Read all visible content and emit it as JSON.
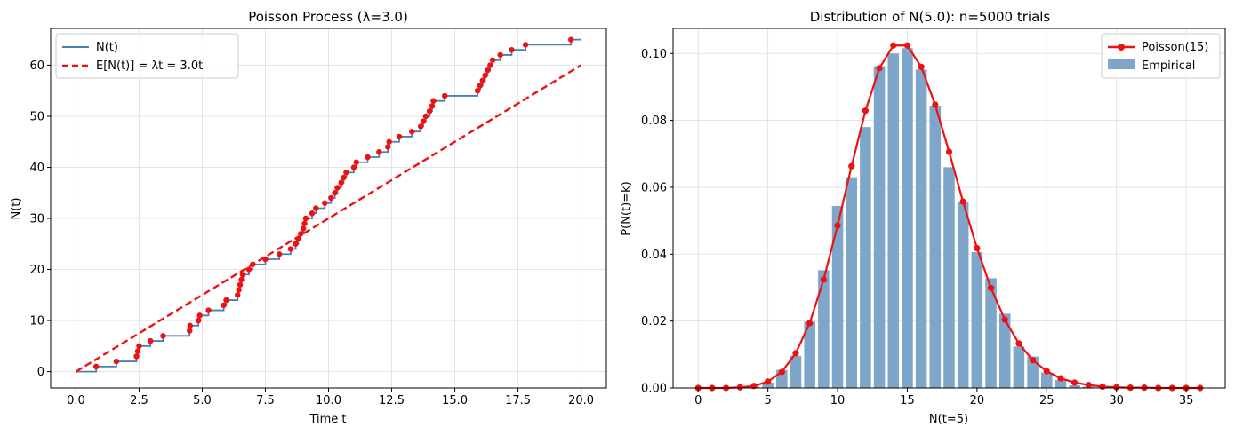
{
  "charts": [
    {
      "type": "line",
      "title": "Poisson Process (λ=3.0)",
      "xlabel": "Time t",
      "ylabel": "N(t)",
      "xlim": [
        -1.0,
        21.0
      ],
      "ylim": [
        -3.2,
        67.2
      ],
      "xticks": [
        0,
        2.5,
        5,
        7.5,
        10,
        12.5,
        15,
        17.5,
        20
      ],
      "xtick_labels": [
        "0.0",
        "2.5",
        "5.0",
        "7.5",
        "10.0",
        "12.5",
        "15.0",
        "17.5",
        "20.0"
      ],
      "yticks": [
        0,
        10,
        20,
        30,
        40,
        50,
        60
      ],
      "ytick_labels": [
        "0",
        "10",
        "20",
        "30",
        "40",
        "50",
        "60"
      ],
      "legend": {
        "placement": "top-left",
        "entries": [
          "N(t)",
          "E[N(t)] = λt = 3.0t"
        ]
      },
      "colors": {
        "step": "#4682b4",
        "expected": "#ee1111",
        "events": "#ee1111"
      },
      "t_end": 20.0,
      "event_times": [
        0.8,
        1.6,
        2.4,
        2.45,
        2.5,
        2.95,
        3.45,
        4.5,
        4.52,
        4.85,
        4.9,
        5.25,
        5.85,
        5.95,
        6.4,
        6.45,
        6.5,
        6.55,
        6.6,
        6.85,
        7.0,
        7.5,
        8.05,
        8.5,
        8.7,
        8.8,
        8.9,
        9.0,
        9.05,
        9.1,
        9.35,
        9.5,
        9.85,
        10.1,
        10.25,
        10.35,
        10.5,
        10.6,
        10.7,
        11.0,
        11.1,
        11.55,
        12.0,
        12.35,
        12.4,
        12.8,
        13.3,
        13.65,
        13.75,
        13.85,
        14.0,
        14.1,
        14.15,
        14.6,
        15.9,
        16.0,
        16.1,
        16.2,
        16.3,
        16.4,
        16.5,
        16.8,
        17.25,
        17.8,
        19.6
      ],
      "expected_rate": 3.0
    },
    {
      "type": "bar",
      "title": "Distribution of N(5.0): n=5000 trials",
      "xlabel": "N(t=5)",
      "ylabel": "P(N(t)=k)",
      "xlim": [
        -1.8,
        37.8
      ],
      "ylim": [
        0,
        0.1075
      ],
      "xticks": [
        0,
        5,
        10,
        15,
        20,
        25,
        30,
        35
      ],
      "xtick_labels": [
        "0",
        "5",
        "10",
        "15",
        "20",
        "25",
        "30",
        "35"
      ],
      "yticks": [
        0,
        0.02,
        0.04,
        0.06,
        0.08,
        0.1
      ],
      "ytick_labels": [
        "0.00",
        "0.02",
        "0.04",
        "0.06",
        "0.08",
        "0.10"
      ],
      "legend": {
        "placement": "top-right",
        "entries": [
          "Poisson(15)",
          "Empirical"
        ]
      },
      "colors": {
        "bars": "#7ea6cb",
        "pmf": "#ee1111"
      },
      "categories": [
        4,
        5,
        6,
        7,
        8,
        9,
        10,
        11,
        12,
        13,
        14,
        15,
        16,
        17,
        18,
        19,
        20,
        21,
        22,
        23,
        24,
        25,
        26,
        27,
        28,
        29
      ],
      "empirical": [
        0.0004,
        0.0016,
        0.0054,
        0.0096,
        0.0198,
        0.0352,
        0.0544,
        0.063,
        0.078,
        0.0962,
        0.1,
        0.1016,
        0.0952,
        0.0844,
        0.066,
        0.0556,
        0.0406,
        0.0328,
        0.0222,
        0.0124,
        0.0094,
        0.0046,
        0.0024,
        0.0008,
        0.0004,
        0.0002
      ],
      "poisson_k": [
        0,
        1,
        2,
        3,
        4,
        5,
        6,
        7,
        8,
        9,
        10,
        11,
        12,
        13,
        14,
        15,
        16,
        17,
        18,
        19,
        20,
        21,
        22,
        23,
        24,
        25,
        26,
        27,
        28,
        29,
        30,
        31,
        32,
        33,
        34,
        35,
        36
      ],
      "poisson_pmf": [
        0.0,
        0.0,
        0.0,
        0.0002,
        0.0006,
        0.0019,
        0.0048,
        0.0104,
        0.0194,
        0.0324,
        0.0486,
        0.0663,
        0.0829,
        0.0956,
        0.1024,
        0.1024,
        0.096,
        0.0847,
        0.0706,
        0.0557,
        0.0418,
        0.0299,
        0.0204,
        0.0133,
        0.0083,
        0.005,
        0.0029,
        0.0016,
        0.0009,
        0.0004,
        0.0002,
        0.0001,
        0.0001,
        0.0,
        0.0,
        0.0,
        0.0
      ]
    }
  ]
}
